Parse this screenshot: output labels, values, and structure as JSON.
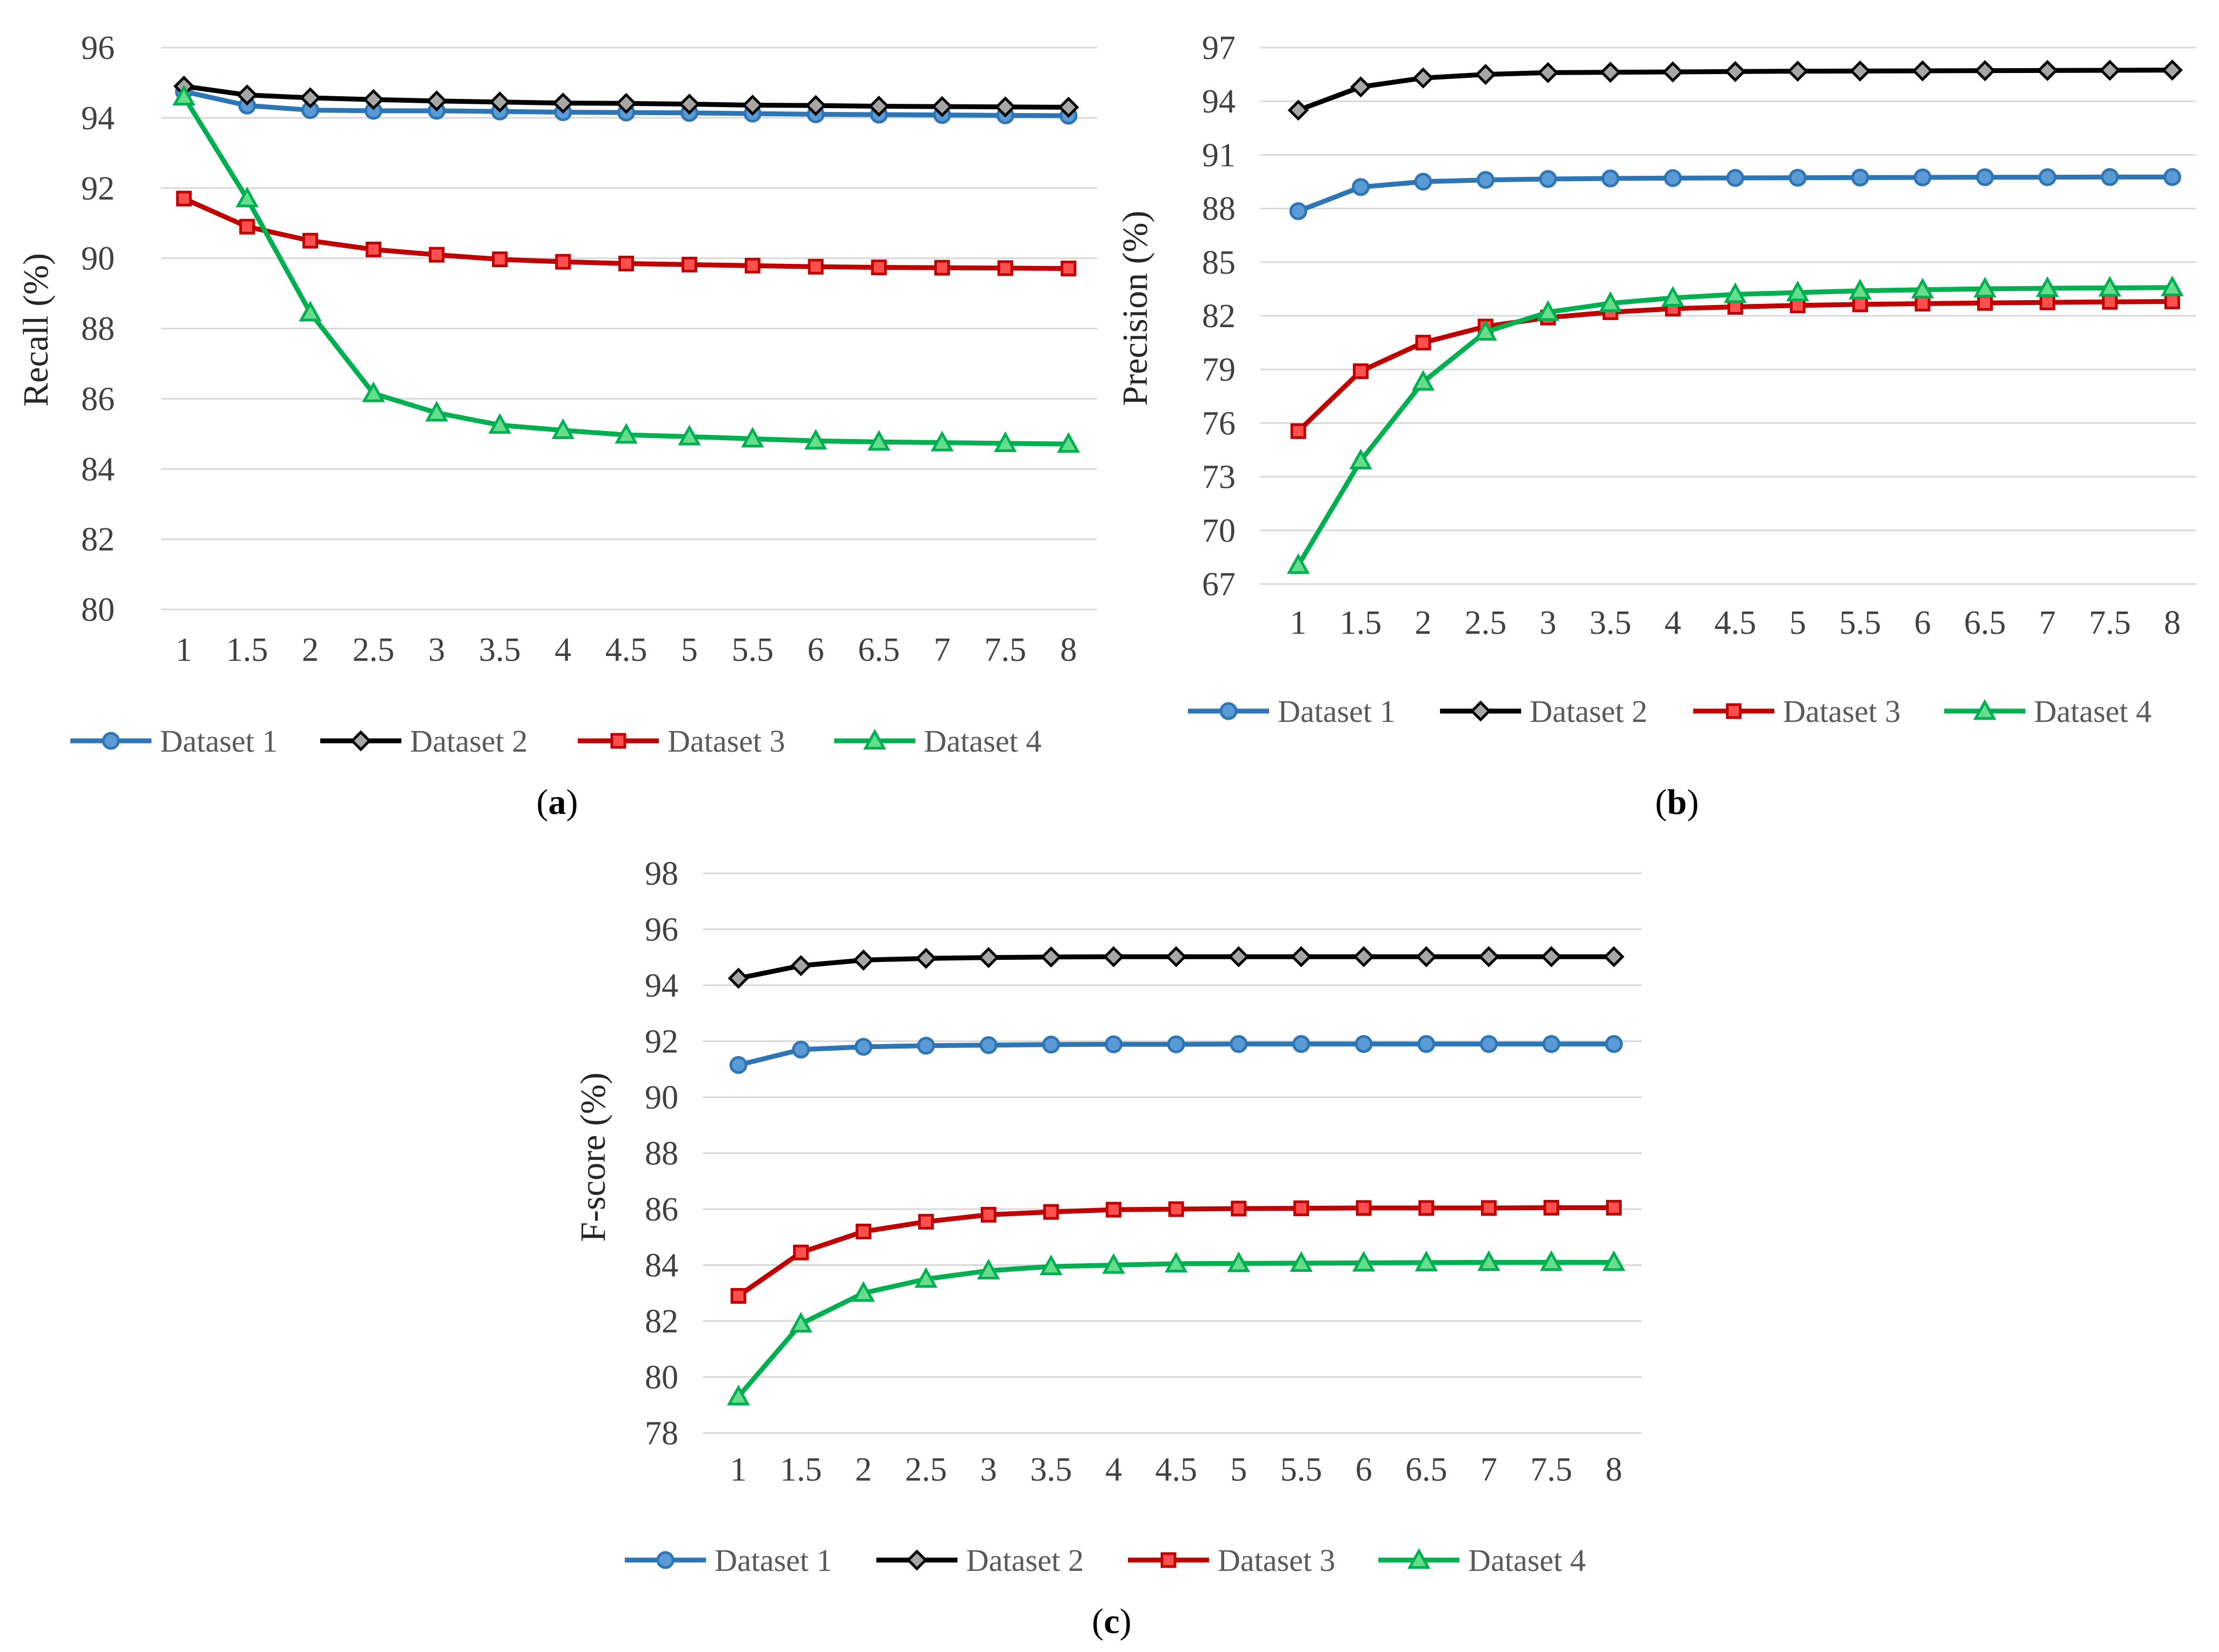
{
  "chart_data": [
    {
      "panel": "a",
      "type": "line",
      "panel_label": "a",
      "ylabel": "Recall (%)",
      "xlabel": "",
      "categories": [
        "1",
        "1.5",
        "2",
        "2.5",
        "3",
        "3.5",
        "4",
        "4.5",
        "5",
        "5.5",
        "6",
        "6.5",
        "7",
        "7.5",
        "8"
      ],
      "ylim": [
        80,
        96
      ],
      "yticks": [
        80,
        82,
        84,
        86,
        88,
        90,
        92,
        94,
        96
      ],
      "grid": true,
      "legend_position": "bottom",
      "series": [
        {
          "name": "Dataset 1",
          "color": "#2E75B6",
          "fill": "#5B9BD5",
          "marker": "circle",
          "values": [
            94.75,
            94.35,
            94.22,
            94.2,
            94.2,
            94.18,
            94.16,
            94.15,
            94.14,
            94.12,
            94.1,
            94.09,
            94.08,
            94.07,
            94.06
          ]
        },
        {
          "name": "Dataset 2",
          "color": "#000000",
          "fill": "#A6A6A6",
          "marker": "diamond",
          "values": [
            94.9,
            94.65,
            94.57,
            94.52,
            94.48,
            94.45,
            94.42,
            94.41,
            94.39,
            94.36,
            94.35,
            94.33,
            94.32,
            94.31,
            94.3
          ]
        },
        {
          "name": "Dataset 3",
          "color": "#C00000",
          "fill": "#FF5050",
          "marker": "square",
          "values": [
            91.7,
            90.9,
            90.5,
            90.25,
            90.1,
            89.97,
            89.9,
            89.85,
            89.82,
            89.79,
            89.76,
            89.74,
            89.73,
            89.72,
            89.71
          ]
        },
        {
          "name": "Dataset 4",
          "color": "#00B050",
          "fill": "#66DD8D",
          "marker": "triangle",
          "values": [
            94.6,
            91.7,
            88.45,
            86.15,
            85.6,
            85.25,
            85.1,
            84.97,
            84.92,
            84.86,
            84.8,
            84.77,
            84.75,
            84.73,
            84.71
          ]
        }
      ]
    },
    {
      "panel": "b",
      "type": "line",
      "panel_label": "b",
      "ylabel": "Precision (%)",
      "xlabel": "",
      "categories": [
        "1",
        "1.5",
        "2",
        "2.5",
        "3",
        "3.5",
        "4",
        "4.5",
        "5",
        "5.5",
        "6",
        "6.5",
        "7",
        "7.5",
        "8"
      ],
      "ylim": [
        67,
        97
      ],
      "yticks": [
        67,
        70,
        73,
        76,
        79,
        82,
        85,
        88,
        91,
        94,
        97
      ],
      "grid": true,
      "legend_position": "bottom",
      "series": [
        {
          "name": "Dataset 1",
          "color": "#2E75B6",
          "fill": "#5B9BD5",
          "marker": "circle",
          "values": [
            87.85,
            89.2,
            89.5,
            89.6,
            89.65,
            89.68,
            89.7,
            89.71,
            89.72,
            89.73,
            89.74,
            89.75,
            89.75,
            89.76,
            89.76
          ]
        },
        {
          "name": "Dataset 2",
          "color": "#000000",
          "fill": "#A6A6A6",
          "marker": "diamond",
          "values": [
            93.5,
            94.8,
            95.3,
            95.5,
            95.6,
            95.62,
            95.64,
            95.66,
            95.68,
            95.69,
            95.7,
            95.71,
            95.72,
            95.73,
            95.74
          ]
        },
        {
          "name": "Dataset 3",
          "color": "#C00000",
          "fill": "#FF5050",
          "marker": "square",
          "values": [
            75.55,
            78.9,
            80.5,
            81.4,
            81.9,
            82.2,
            82.4,
            82.5,
            82.58,
            82.64,
            82.68,
            82.72,
            82.75,
            82.78,
            82.8
          ]
        },
        {
          "name": "Dataset 4",
          "color": "#00B050",
          "fill": "#66DD8D",
          "marker": "triangle",
          "values": [
            68.05,
            73.9,
            78.3,
            81.1,
            82.2,
            82.7,
            83.0,
            83.2,
            83.3,
            83.4,
            83.46,
            83.51,
            83.54,
            83.56,
            83.58
          ]
        }
      ]
    },
    {
      "panel": "c",
      "type": "line",
      "panel_label": "c",
      "ylabel": "F-score (%)",
      "xlabel": "",
      "categories": [
        "1",
        "1.5",
        "2",
        "2.5",
        "3",
        "3.5",
        "4",
        "4.5",
        "5",
        "5.5",
        "6",
        "6.5",
        "7",
        "7.5",
        "8"
      ],
      "ylim": [
        78,
        98
      ],
      "yticks": [
        78,
        80,
        82,
        84,
        86,
        88,
        90,
        92,
        94,
        96,
        98
      ],
      "grid": true,
      "legend_position": "bottom",
      "series": [
        {
          "name": "Dataset 1",
          "color": "#2E75B6",
          "fill": "#5B9BD5",
          "marker": "circle",
          "values": [
            91.15,
            91.7,
            91.8,
            91.84,
            91.86,
            91.88,
            91.89,
            91.89,
            91.9,
            91.9,
            91.9,
            91.9,
            91.9,
            91.9,
            91.9
          ]
        },
        {
          "name": "Dataset 2",
          "color": "#000000",
          "fill": "#A6A6A6",
          "marker": "diamond",
          "values": [
            94.25,
            94.7,
            94.9,
            94.96,
            94.99,
            95.01,
            95.02,
            95.02,
            95.02,
            95.02,
            95.02,
            95.02,
            95.02,
            95.02,
            95.02
          ]
        },
        {
          "name": "Dataset 3",
          "color": "#C00000",
          "fill": "#FF5050",
          "marker": "square",
          "values": [
            82.9,
            84.45,
            85.2,
            85.55,
            85.8,
            85.9,
            85.98,
            86.0,
            86.02,
            86.03,
            86.04,
            86.04,
            86.04,
            86.05,
            86.05
          ]
        },
        {
          "name": "Dataset 4",
          "color": "#00B050",
          "fill": "#66DD8D",
          "marker": "triangle",
          "values": [
            79.3,
            81.9,
            83.0,
            83.5,
            83.8,
            83.95,
            84.0,
            84.05,
            84.06,
            84.07,
            84.08,
            84.09,
            84.1,
            84.1,
            84.1
          ]
        }
      ]
    }
  ]
}
